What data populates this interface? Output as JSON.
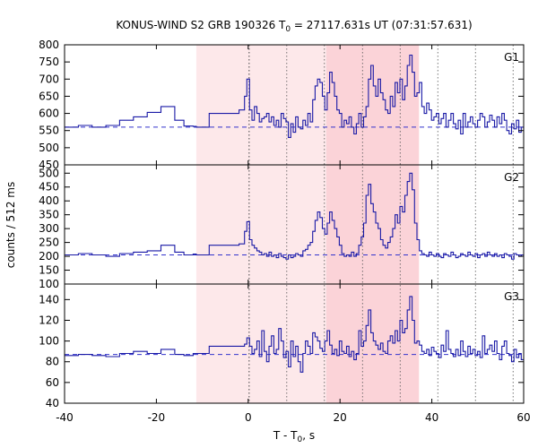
{
  "title": {
    "main": "KONUS-WIND S2 GRB 190326 T",
    "sub": "0",
    "rest": " = 27117.631s UT (07:31:57.631)"
  },
  "ylabel": "counts / 512 ms",
  "xlabel": {
    "main": "T - T",
    "sub": "0",
    "rest": ", s"
  },
  "colors": {
    "line": "#1a1aa6",
    "baseline": "#3333cc",
    "shade_light": "#fde8ea",
    "shade_dark": "#fbd3d8",
    "grid": "#555555"
  },
  "chart_data": {
    "type": "line",
    "xlim": [
      -40,
      60
    ],
    "x_ticks": [
      -40,
      -20,
      0,
      20,
      40,
      60
    ],
    "shaded_regions": [
      {
        "x0": -11.3,
        "x1": 17.0,
        "shade": "light"
      },
      {
        "x0": 17.0,
        "x1": 37.2,
        "shade": "dark"
      }
    ],
    "vertical_lines": [
      0.2,
      8.4,
      16.6,
      24.9,
      33.1,
      41.3,
      49.5,
      57.7
    ],
    "panels": [
      {
        "name": "G1",
        "ylim": [
          450,
          800
        ],
        "y_ticks": [
          450,
          500,
          550,
          600,
          650,
          700,
          750,
          800
        ],
        "baseline": 560,
        "coarse": [
          [
            -40,
            560
          ],
          [
            -37,
            565
          ],
          [
            -34,
            560
          ],
          [
            -31,
            565
          ],
          [
            -28,
            580
          ],
          [
            -25,
            590
          ],
          [
            -22,
            603
          ],
          [
            -19,
            620
          ],
          [
            -16,
            580
          ],
          [
            -14,
            563
          ],
          [
            -12,
            562
          ],
          [
            -11.3,
            560
          ],
          [
            -8.5,
            600
          ],
          [
            -2,
            610
          ],
          [
            -0.8,
            650
          ],
          [
            -0.3,
            700
          ],
          [
            0.3,
            700
          ]
        ],
        "fine": [
          610,
          580,
          620,
          600,
          575,
          585,
          590,
          600,
          575,
          590,
          565,
          580,
          560,
          600,
          585,
          575,
          530,
          570,
          545,
          590,
          560,
          555,
          580,
          565,
          600,
          575,
          640,
          680,
          700,
          690,
          650,
          610,
          660,
          720,
          690,
          650,
          610,
          600,
          560,
          580,
          570,
          590,
          560,
          540,
          570,
          600,
          560,
          590,
          620,
          700,
          740,
          680,
          650,
          700,
          660,
          640,
          610,
          600,
          650,
          620,
          690,
          660,
          700,
          640,
          680,
          740,
          770,
          720,
          650,
          660,
          690,
          620,
          600,
          630,
          610,
          580,
          590,
          600,
          570,
          585,
          600,
          560,
          580,
          600,
          570,
          555,
          580,
          540,
          600,
          560,
          575,
          590,
          570,
          560,
          580,
          600,
          590,
          560,
          575,
          595,
          580,
          560,
          590,
          570,
          600,
          580,
          550,
          540,
          570,
          555,
          580,
          545,
          560
        ]
      },
      {
        "name": "G2",
        "ylim": [
          100,
          530
        ],
        "y_ticks": [
          100,
          150,
          200,
          250,
          300,
          350,
          400,
          450,
          500
        ],
        "baseline": 205,
        "coarse": [
          [
            -40,
            205
          ],
          [
            -37,
            210
          ],
          [
            -34,
            205
          ],
          [
            -31,
            200
          ],
          [
            -28,
            210
          ],
          [
            -25,
            215
          ],
          [
            -22,
            220
          ],
          [
            -19,
            240
          ],
          [
            -16,
            215
          ],
          [
            -14,
            205
          ],
          [
            -12,
            208
          ],
          [
            -11.3,
            205
          ],
          [
            -8.5,
            240
          ],
          [
            -2,
            245
          ],
          [
            -0.8,
            290
          ],
          [
            -0.3,
            325
          ],
          [
            0.3,
            325
          ]
        ],
        "fine": [
          260,
          240,
          230,
          220,
          215,
          205,
          210,
          200,
          215,
          200,
          205,
          195,
          210,
          200,
          195,
          190,
          205,
          195,
          200,
          210,
          205,
          200,
          220,
          225,
          240,
          250,
          290,
          330,
          360,
          340,
          300,
          280,
          320,
          360,
          330,
          300,
          270,
          240,
          210,
          200,
          205,
          200,
          215,
          200,
          210,
          240,
          270,
          320,
          420,
          460,
          390,
          360,
          320,
          300,
          260,
          240,
          230,
          250,
          270,
          300,
          350,
          320,
          380,
          360,
          420,
          470,
          500,
          440,
          320,
          260,
          220,
          210,
          205,
          200,
          215,
          205,
          200,
          210,
          200,
          195,
          210,
          205,
          200,
          215,
          205,
          195,
          200,
          210,
          205,
          200,
          215,
          205,
          200,
          210,
          195,
          205,
          210,
          200,
          215,
          205,
          200,
          210,
          200,
          205,
          195,
          210,
          205,
          200,
          190,
          210,
          205,
          200,
          205
        ]
      },
      {
        "name": "G3",
        "ylim": [
          40,
          155
        ],
        "y_ticks": [
          40,
          60,
          80,
          100,
          120,
          140
        ],
        "baseline": 87,
        "coarse": [
          [
            -40,
            86
          ],
          [
            -37,
            87
          ],
          [
            -34,
            86
          ],
          [
            -31,
            85
          ],
          [
            -28,
            88
          ],
          [
            -25,
            90
          ],
          [
            -22,
            88
          ],
          [
            -19,
            92
          ],
          [
            -16,
            87
          ],
          [
            -14,
            86
          ],
          [
            -12,
            88
          ],
          [
            -11.3,
            88
          ],
          [
            -8.5,
            95
          ],
          [
            -2,
            95
          ],
          [
            -0.8,
            97
          ],
          [
            -0.3,
            103
          ],
          [
            0.3,
            103
          ]
        ],
        "fine": [
          95,
          88,
          92,
          100,
          85,
          110,
          90,
          80,
          95,
          105,
          88,
          92,
          112,
          100,
          84,
          90,
          75,
          100,
          85,
          95,
          80,
          70,
          88,
          100,
          95,
          88,
          108,
          104,
          100,
          93,
          90,
          100,
          110,
          96,
          88,
          92,
          86,
          100,
          90,
          88,
          95,
          85,
          90,
          82,
          88,
          110,
          95,
          100,
          115,
          130,
          108,
          100,
          96,
          92,
          98,
          90,
          88,
          100,
          105,
          98,
          110,
          100,
          120,
          108,
          112,
          130,
          143,
          120,
          98,
          100,
          96,
          90,
          88,
          92,
          86,
          94,
          90,
          88,
          84,
          96,
          90,
          110,
          92,
          88,
          85,
          92,
          86,
          100,
          90,
          85,
          95,
          88,
          92,
          86,
          90,
          84,
          105,
          88,
          92,
          96,
          90,
          100,
          88,
          82,
          95,
          100,
          88,
          86,
          80,
          92,
          84,
          88,
          82
        ]
      }
    ]
  }
}
